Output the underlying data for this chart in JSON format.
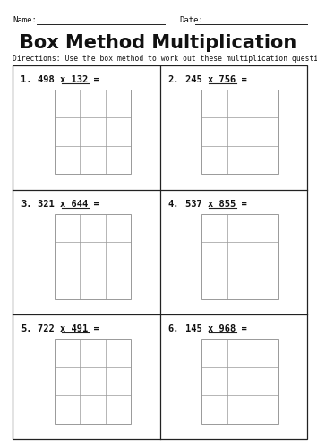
{
  "title": "Box Method Multiplication",
  "directions": "Directions: Use the box method to work out these multiplication questions.",
  "name_label": "Name:",
  "date_label": "Date:",
  "problems": [
    {
      "num": "1.",
      "eq": "498 x 132 = "
    },
    {
      "num": "2.",
      "eq": "245 x 756 = "
    },
    {
      "num": "3.",
      "eq": "321 x 644 = "
    },
    {
      "num": "4.",
      "eq": "537 x 855 = "
    },
    {
      "num": "5.",
      "eq": "722 x 491 = "
    },
    {
      "num": "6.",
      "eq": "145 x 968 = "
    }
  ],
  "bg_color": "#ffffff",
  "border_color": "#222222",
  "grid_color": "#999999",
  "text_color": "#111111",
  "title_fontsize": 15,
  "header_fontsize": 6.5,
  "problem_fontsize": 7.5,
  "directions_fontsize": 5.8
}
